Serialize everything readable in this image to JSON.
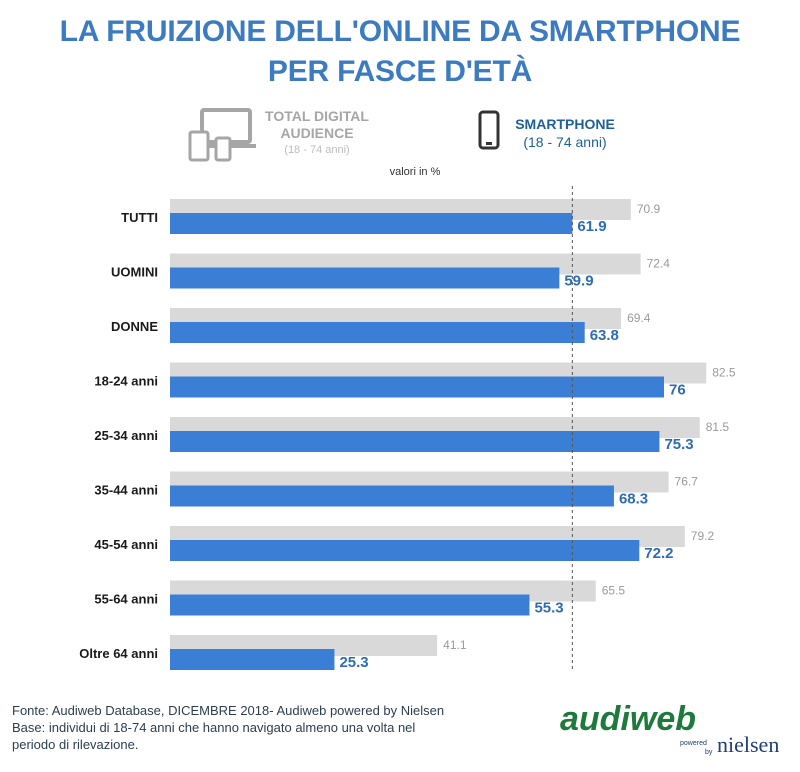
{
  "title_line1": "LA FRUIZIONE DELL'ONLINE DA SMARTPHONE",
  "title_line2": "PER FASCE D'ETÀ",
  "legend": {
    "total": {
      "title": "TOTAL DIGITAL AUDIENCE",
      "subtitle": "(18 - 74 anni)",
      "icon": "devices-icon"
    },
    "smartphone": {
      "title": "SMARTPHONE",
      "subtitle": "(18 - 74 anni)",
      "icon": "smartphone-icon"
    }
  },
  "units": "valori in %",
  "chart_data": {
    "type": "bar",
    "orientation": "horizontal",
    "categories": [
      "TUTTI",
      "UOMINI",
      "DONNE",
      "18-24 anni",
      "25-34 anni",
      "35-44 anni",
      "45-54 anni",
      "55-64 anni",
      "Oltre 64 anni"
    ],
    "series": [
      {
        "name": "TOTAL DIGITAL AUDIENCE",
        "values": [
          70.9,
          72.4,
          69.4,
          82.5,
          81.5,
          76.7,
          79.2,
          65.5,
          41.1
        ],
        "color": "#d9d9d9",
        "label_color": "#9a9a9a"
      },
      {
        "name": "SMARTPHONE",
        "values": [
          61.9,
          59.9,
          63.8,
          76,
          75.3,
          68.3,
          72.2,
          55.3,
          25.3
        ],
        "color": "#3a7fd5",
        "label_color": "#2e6db4"
      }
    ],
    "reference_line": {
      "value": 61.9,
      "style": "dashed"
    },
    "xlim": [
      0,
      100
    ]
  },
  "footer": {
    "source": "Fonte: Audiweb Database, DICEMBRE 2018- Audiweb powered by Nielsen",
    "base_line1": "Base: individui di 18-74 anni che hanno navigato almeno una volta nel",
    "base_line2": "periodo di rilevazione."
  },
  "logo": {
    "main": "audiweb",
    "powered": "powered",
    "by": "by",
    "brand": "nielsen",
    "colors": {
      "green": "#1e7a3c",
      "blue": "#1d3f7a"
    }
  }
}
